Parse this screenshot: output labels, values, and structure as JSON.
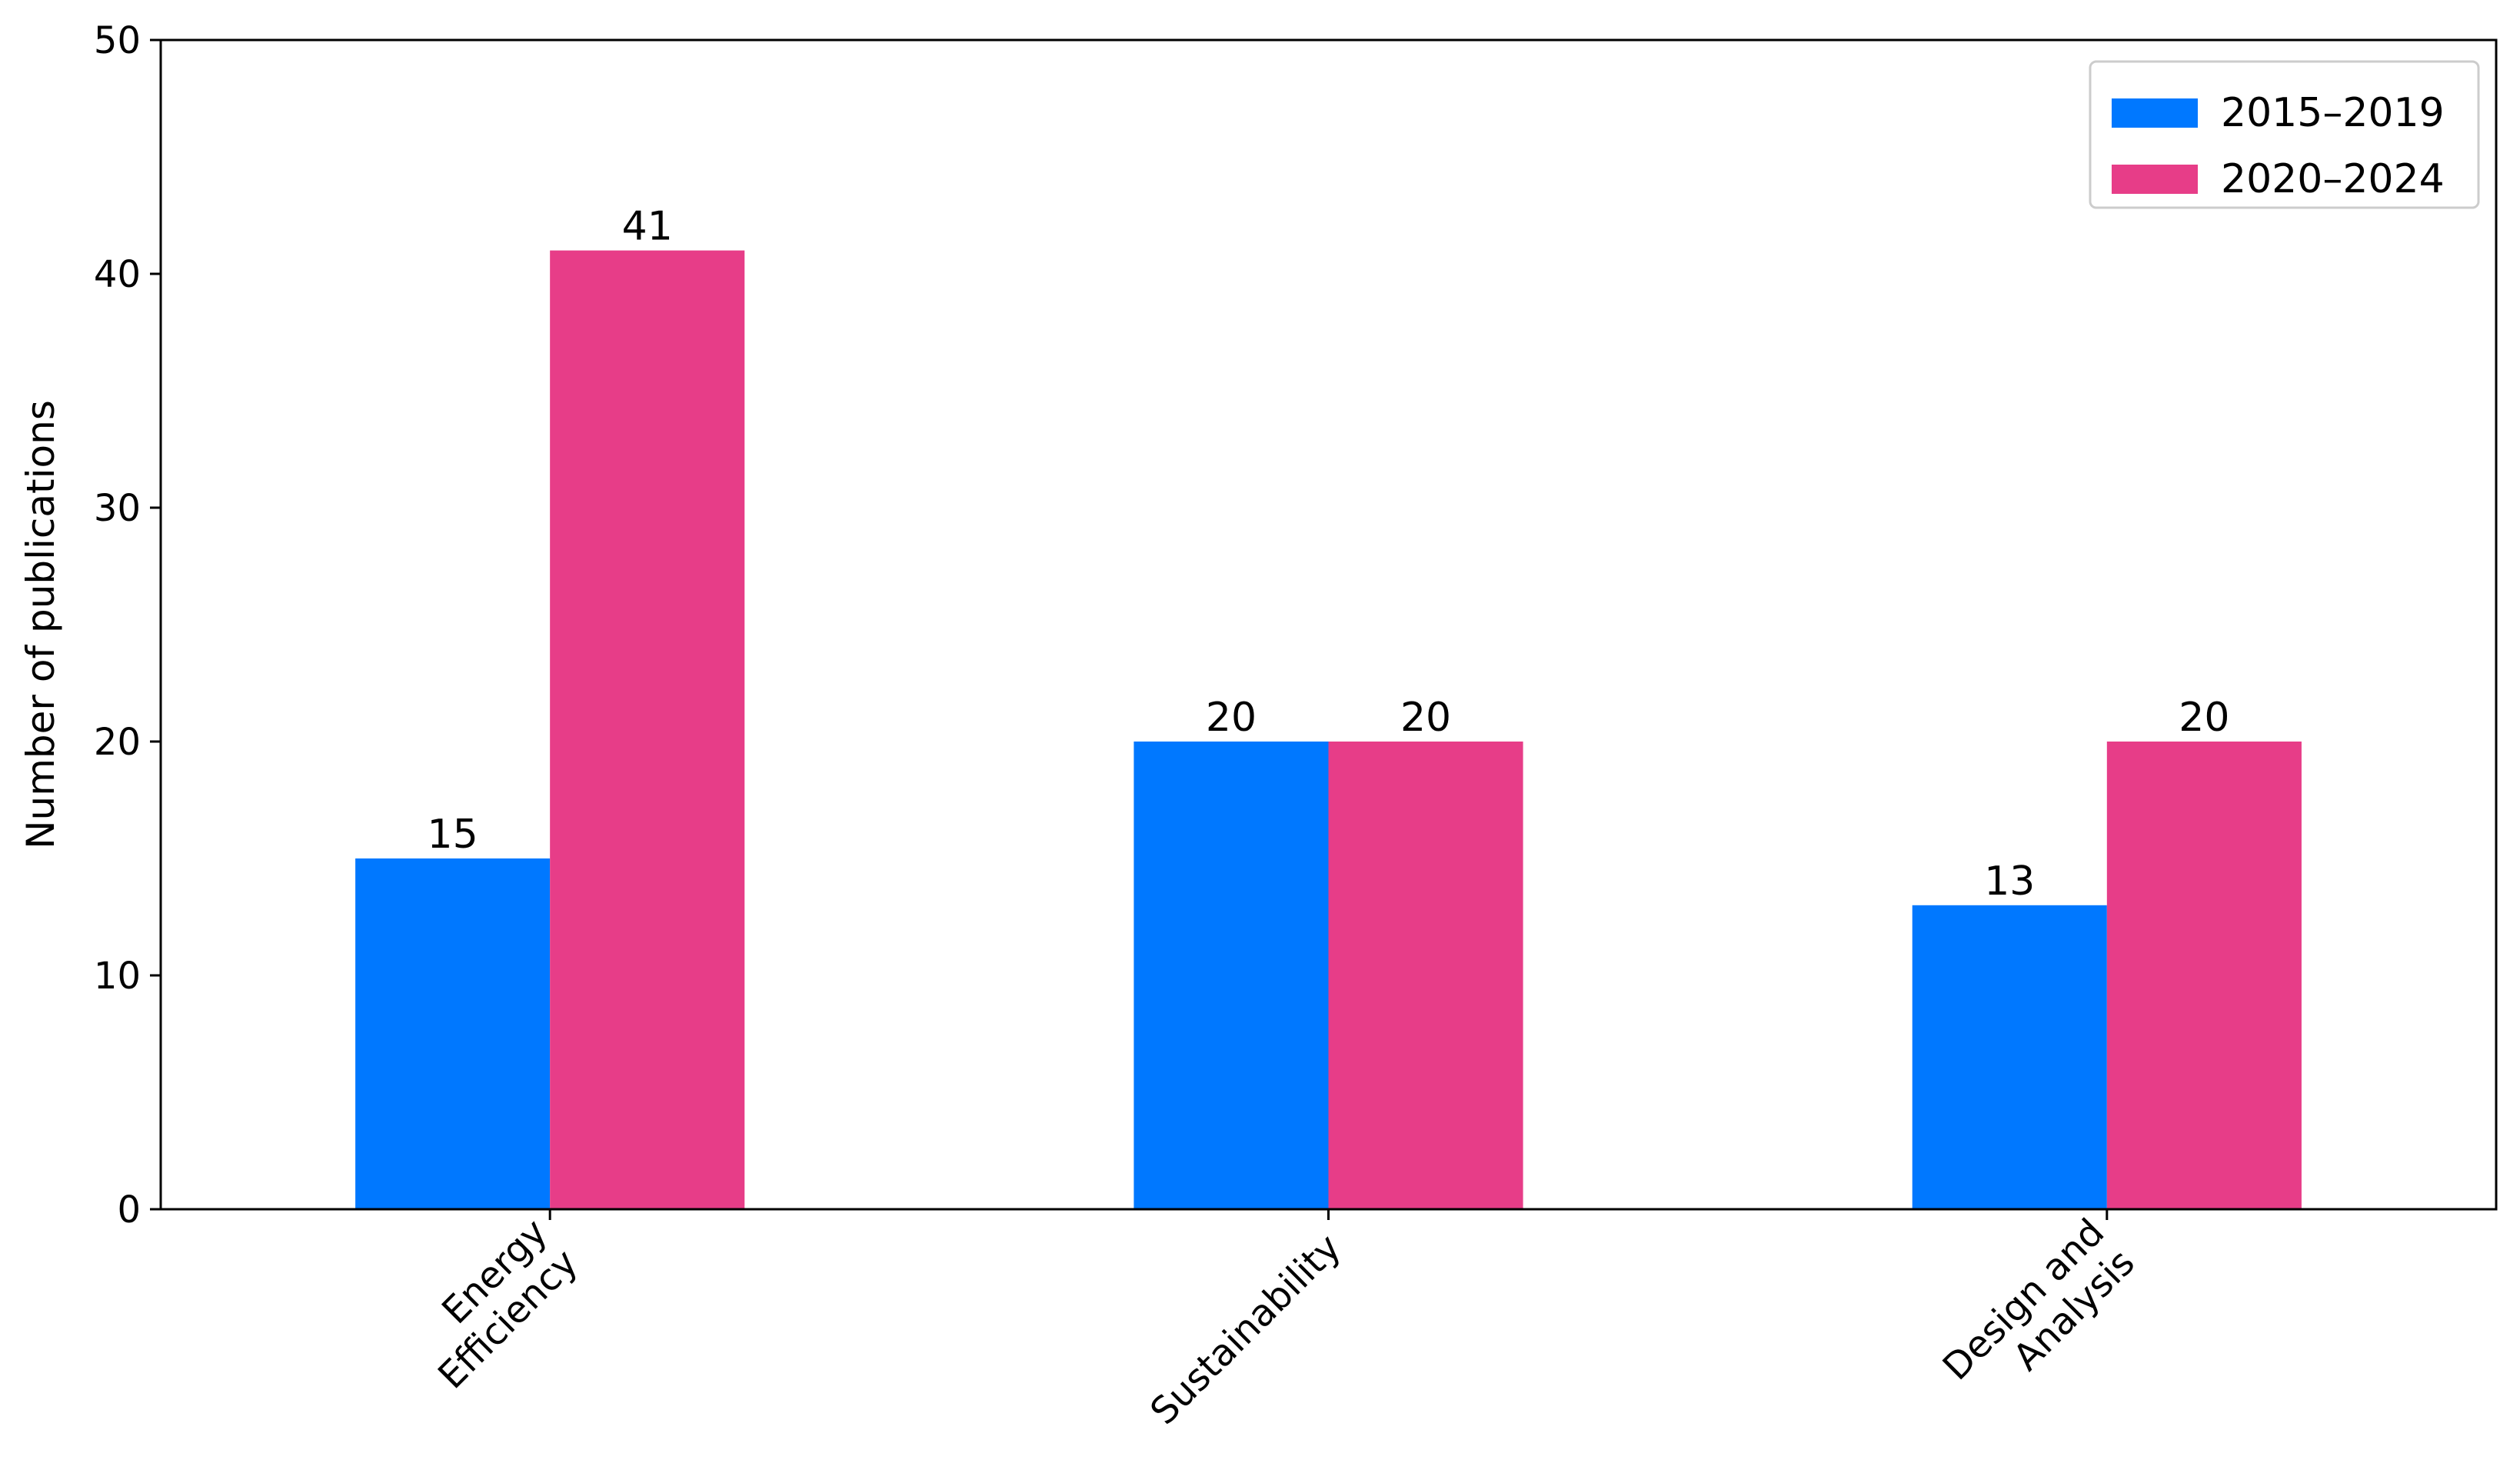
{
  "chart_data": {
    "type": "bar",
    "title": "",
    "xlabel": "",
    "ylabel": "Number of publications",
    "ylim": [
      0,
      50
    ],
    "yticks": [
      0,
      10,
      20,
      30,
      40,
      50
    ],
    "grid": false,
    "legend_position": "top-right",
    "categories": [
      [
        "Energy",
        "Efficiency"
      ],
      [
        "Sustainability"
      ],
      [
        "Design and",
        "Analysis"
      ]
    ],
    "series": [
      {
        "name": "2015–2019",
        "color": "#0078FF",
        "values": [
          15,
          20,
          13
        ]
      },
      {
        "name": "2020–2024",
        "color": "#E73D88",
        "values": [
          41,
          20,
          20
        ]
      }
    ]
  }
}
